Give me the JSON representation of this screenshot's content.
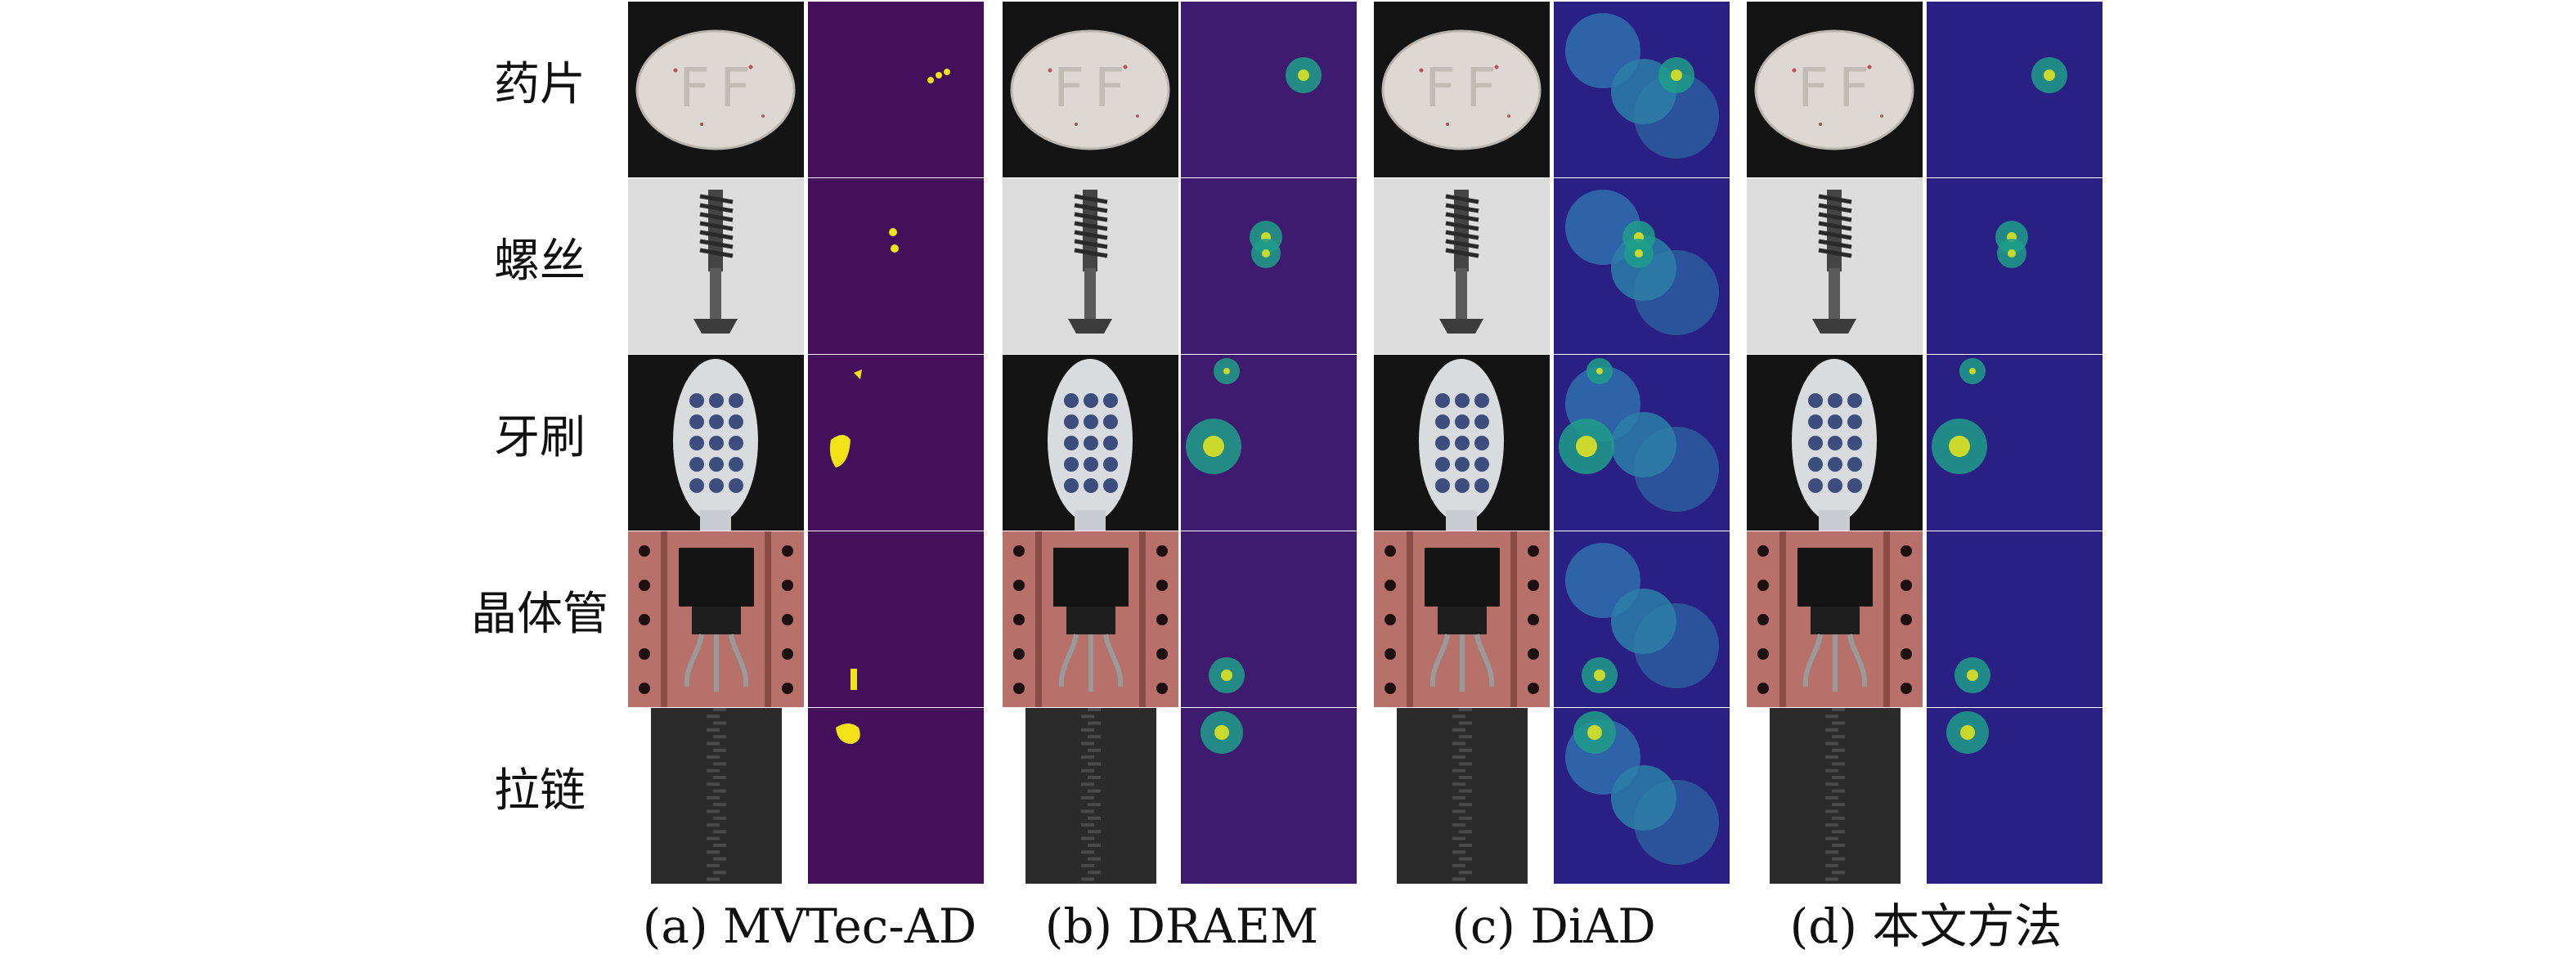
{
  "row_labels": [
    "药片",
    "螺丝",
    "牙刷",
    "晶体管",
    "拉链"
  ],
  "captions": [
    "(a) MVTec-AD",
    "(b) DRAEM",
    "(c) DiAD",
    "(d) 本文方法"
  ],
  "panel_kinds": [
    "image",
    "mask",
    "image",
    "heatmap",
    "image",
    "heatmap",
    "image",
    "heatmap"
  ],
  "colors": {
    "background": "#ffffff",
    "mask_bg": "#44105b",
    "mask_fg": "#f2e218",
    "heat_low": "#2a1f82",
    "heat_mid": "#1f9d8a",
    "heat_high": "#e9e51c"
  }
}
